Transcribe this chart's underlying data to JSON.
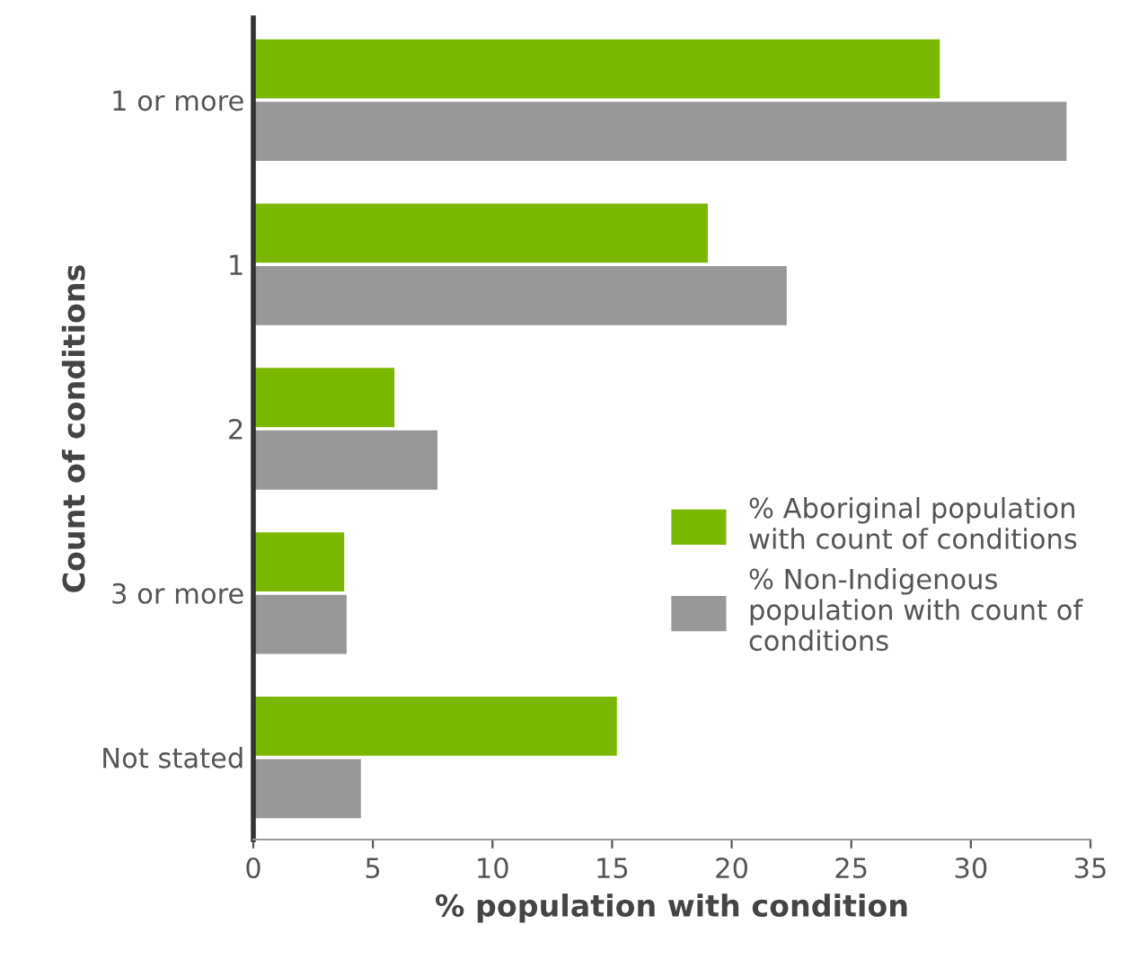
{
  "chart_data": {
    "type": "bar",
    "orientation": "horizontal",
    "categories": [
      "1 or more",
      "1",
      "2",
      "3 or more",
      "Not stated"
    ],
    "xlabel": "% population with condition",
    "ylabel": "Count of conditions",
    "series": [
      {
        "name": "% Aboriginal population with count of conditions",
        "color": "#7ab800",
        "values": [
          28.7,
          19.0,
          5.9,
          3.8,
          15.2
        ]
      },
      {
        "name": "% Non-Indigenous population with count of conditions",
        "color": "#9a979a",
        "values": [
          34.0,
          22.3,
          7.7,
          3.9,
          4.5
        ]
      }
    ],
    "xlim": [
      0,
      35
    ],
    "xticks": [
      0,
      5,
      10,
      15,
      20,
      25,
      30,
      35
    ],
    "grid": false,
    "legend": "right"
  }
}
